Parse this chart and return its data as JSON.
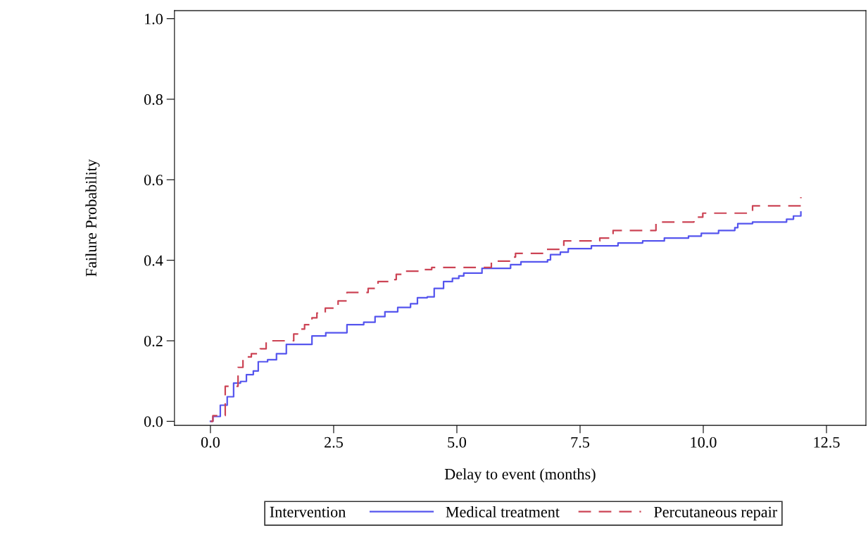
{
  "chart_data": {
    "type": "step",
    "xlabel": "Delay to event (months)",
    "ylabel": "Failure Probability",
    "legend_title": "Intervention",
    "legend": "bottom",
    "grid": false,
    "xlim": [
      -0.73,
      13.3
    ],
    "ylim": [
      -0.01,
      1.02
    ],
    "xticks": [
      {
        "value": 0,
        "label": "0.0"
      },
      2.5,
      {
        "value": 5,
        "label": "5.0"
      },
      7.5,
      {
        "value": 10,
        "label": "10.0"
      },
      12.5
    ],
    "yticks": [
      {
        "value": 0,
        "label": "0.0"
      },
      0.2,
      0.4,
      0.6,
      0.8,
      {
        "value": 1,
        "label": "1.0"
      }
    ],
    "series": [
      {
        "name": "Medical treatment",
        "color": "#5555ee",
        "line_style": "solid",
        "x": [
          0,
          0.05,
          0.2,
          0.34,
          0.47,
          0.61,
          0.73,
          0.87,
          0.97,
          1.16,
          1.34,
          1.54,
          2.06,
          2.34,
          2.77,
          3.11,
          3.34,
          3.54,
          3.8,
          4.06,
          4.2,
          4.4,
          4.54,
          4.73,
          4.91,
          5.04,
          5.14,
          5.51,
          6.09,
          6.3,
          6.84,
          6.9,
          7.1,
          7.26,
          7.73,
          8.27,
          8.77,
          9.21,
          9.7,
          9.96,
          10.31,
          10.64,
          10.7,
          11.0,
          11.69,
          11.83,
          11.98
        ],
        "values": [
          0,
          0.012,
          0.04,
          0.061,
          0.095,
          0.099,
          0.116,
          0.125,
          0.148,
          0.153,
          0.168,
          0.191,
          0.212,
          0.22,
          0.24,
          0.246,
          0.26,
          0.272,
          0.283,
          0.292,
          0.307,
          0.309,
          0.33,
          0.347,
          0.355,
          0.361,
          0.368,
          0.38,
          0.389,
          0.396,
          0.401,
          0.414,
          0.42,
          0.429,
          0.436,
          0.443,
          0.448,
          0.455,
          0.46,
          0.467,
          0.474,
          0.481,
          0.491,
          0.495,
          0.502,
          0.51,
          0.52
        ]
      },
      {
        "name": "Percutaneous repair",
        "color": "#cc4455",
        "line_style": "dashed",
        "x": [
          0,
          0.05,
          0.3,
          0.56,
          0.66,
          0.83,
          1.01,
          1.13,
          1.69,
          1.77,
          1.91,
          2.06,
          2.16,
          2.33,
          2.59,
          2.77,
          3.2,
          3.4,
          3.69,
          3.77,
          3.91,
          4.3,
          4.49,
          5.7,
          6.13,
          6.19,
          6.8,
          7.17,
          7.9,
          8.17,
          9.04,
          9.81,
          9.99,
          11.0,
          11.98
        ],
        "values": [
          0,
          0.014,
          0.087,
          0.134,
          0.16,
          0.168,
          0.18,
          0.2,
          0.217,
          0.229,
          0.24,
          0.257,
          0.269,
          0.281,
          0.299,
          0.32,
          0.33,
          0.347,
          0.352,
          0.365,
          0.373,
          0.377,
          0.382,
          0.398,
          0.408,
          0.417,
          0.427,
          0.448,
          0.455,
          0.474,
          0.495,
          0.507,
          0.517,
          0.535,
          0.557
        ]
      }
    ]
  }
}
